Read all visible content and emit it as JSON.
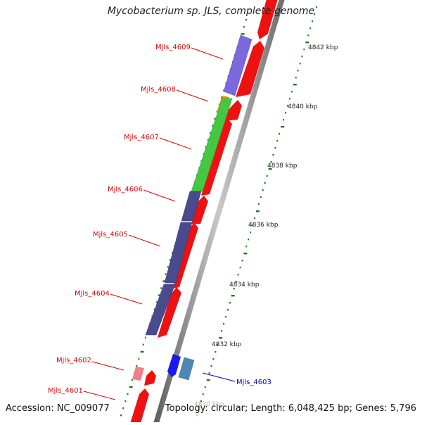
{
  "title": "Mycobacterium sp. JLS, complete genome",
  "accession": "Accession: NC_009077",
  "topology": "Topology: circular; Length: 6,048,425 bp; Genes: 5,796",
  "ticks": [
    "4842 kbp",
    "4840 kbp",
    "4838 kbp",
    "4836 kbp",
    "4834 kbp",
    "4832 kbp",
    "4830 kbp"
  ],
  "genes": [
    {
      "name": "Mjls_4609",
      "color": "#dd0000"
    },
    {
      "name": "Mjls_4608",
      "color": "#dd0000"
    },
    {
      "name": "Mjls_4607",
      "color": "#dd0000"
    },
    {
      "name": "Mjls_4606",
      "color": "#dd0000"
    },
    {
      "name": "Mjls_4605",
      "color": "#dd0000"
    },
    {
      "name": "Mjls_4604",
      "color": "#dd0000"
    },
    {
      "name": "Mjls_4602",
      "color": "#dd0000"
    },
    {
      "name": "Mjls_4601",
      "color": "#dd0000"
    },
    {
      "name": "Mjls_4603",
      "color": "#0000cc"
    }
  ],
  "colors": {
    "forward_cds": "#ee1111",
    "reverse_cds": "#1a1aee",
    "purple_feature": "#7b68dd",
    "dark_purple_feature": "#4a4a8e",
    "green_feature": "#44c844",
    "orange_feature": "#f08a10",
    "pink_feature": "#f07f8a",
    "steel_blue_feature": "#4f86b8",
    "backbone": "#8a8a8a",
    "tick_green": "#1e7a1e"
  }
}
